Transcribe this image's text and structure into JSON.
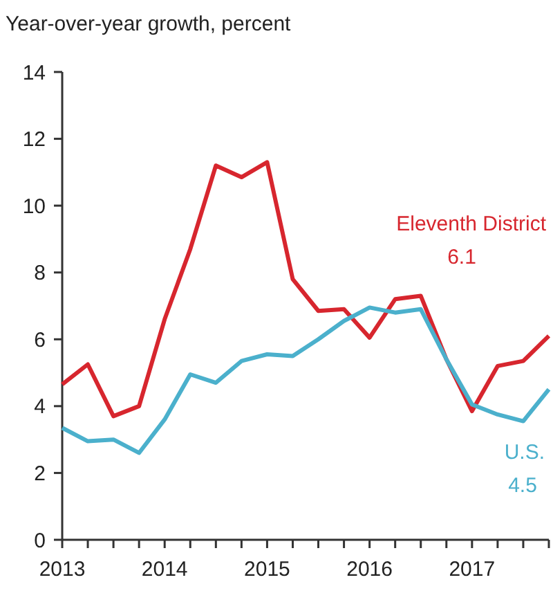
{
  "chart_data": {
    "type": "line",
    "ylabel": "Year-over-year growth, percent",
    "x": [
      2013,
      2013.25,
      2013.5,
      2013.75,
      2014,
      2014.25,
      2014.5,
      2014.75,
      2015,
      2015.25,
      2015.5,
      2015.75,
      2016,
      2016.25,
      2016.5,
      2016.75,
      2017,
      2017.25,
      2017.5,
      2017.75
    ],
    "series": [
      {
        "name": "Eleventh District",
        "color": "#d7262e",
        "values": [
          4.65,
          5.25,
          3.7,
          4.0,
          6.6,
          8.7,
          11.2,
          10.85,
          11.3,
          7.8,
          6.85,
          6.9,
          6.05,
          7.2,
          7.3,
          5.4,
          3.85,
          5.2,
          5.35,
          6.1
        ]
      },
      {
        "name": "U.S.",
        "color": "#4bb0cc",
        "values": [
          3.35,
          2.95,
          3.0,
          2.6,
          3.6,
          4.95,
          4.7,
          5.35,
          5.55,
          5.5,
          6.0,
          6.55,
          6.95,
          6.8,
          6.9,
          5.4,
          4.05,
          3.75,
          3.55,
          4.5
        ]
      }
    ],
    "annotations": [
      "6.1",
      "4.5"
    ],
    "xlim": [
      2013,
      2017.75
    ],
    "xticks": [
      2013,
      {
        "value": 2013.25,
        "label": null
      },
      {
        "value": 2013.5,
        "label": null
      },
      {
        "value": 2013.75,
        "label": null
      },
      2014,
      {
        "value": 2014.25,
        "label": null
      },
      {
        "value": 2014.5,
        "label": null
      },
      {
        "value": 2014.75,
        "label": null
      },
      2015,
      {
        "value": 2015.25,
        "label": null
      },
      {
        "value": 2015.5,
        "label": null
      },
      {
        "value": 2015.75,
        "label": null
      },
      2016,
      {
        "value": 2016.25,
        "label": null
      },
      {
        "value": 2016.5,
        "label": null
      },
      {
        "value": 2016.75,
        "label": null
      },
      2017,
      {
        "value": 2017.25,
        "label": null
      },
      {
        "value": 2017.5,
        "label": null
      },
      {
        "value": 2017.75,
        "label": null
      }
    ],
    "ylim": [
      0,
      14
    ],
    "yticks": [
      0,
      2,
      4,
      6,
      8,
      10,
      12,
      14
    ],
    "grid": false,
    "marker": "none",
    "line_style": "solid"
  }
}
